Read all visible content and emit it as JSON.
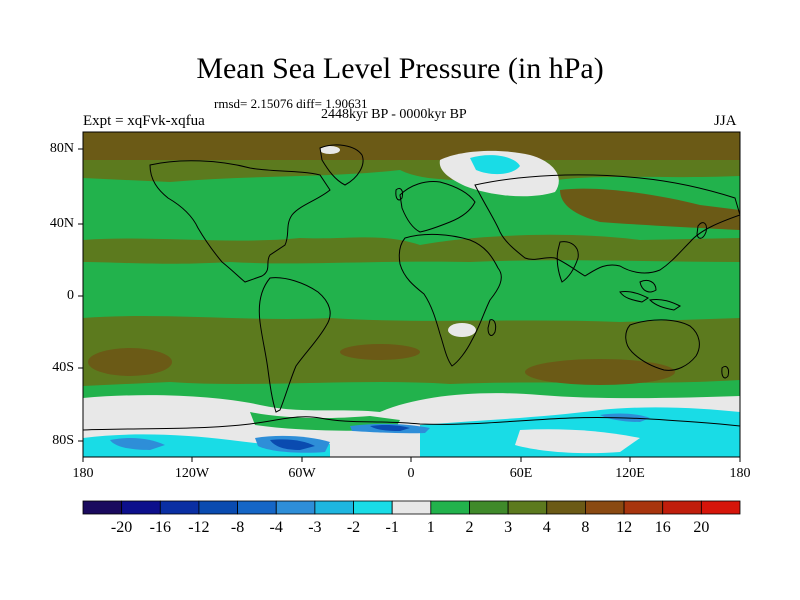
{
  "title": "Mean Sea Level Pressure (in hPa)",
  "stats": "rmsd= 2.15076 diff= 1.90631",
  "period": "2448kyr BP - 0000kyr BP",
  "experiment": "Expt = xqFvk-xqfua",
  "season": "JJA",
  "lat_labels": [
    "80N",
    "40N",
    "0",
    "40S",
    "80S"
  ],
  "lon_labels": [
    "180",
    "120W",
    "60W",
    "0",
    "60E",
    "120E",
    "180"
  ],
  "colorbar": {
    "labels": [
      "-20",
      "-16",
      "-12",
      "-8",
      "-4",
      "-3",
      "-2",
      "-1",
      "1",
      "2",
      "3",
      "4",
      "8",
      "12",
      "16",
      "20"
    ],
    "colors": [
      "#1a0a5e",
      "#0d0f8c",
      "#0a2fa3",
      "#0a4bb0",
      "#1566c6",
      "#2e8ed8",
      "#1eb6e0",
      "#19dce6",
      "#e8e8e8",
      "#22b24c",
      "#3f8a2a",
      "#5c7a1e",
      "#6b5a16",
      "#8a4a12",
      "#a8350e",
      "#c01e0c",
      "#d6150a"
    ]
  },
  "map_colors": {
    "ocean_base": "#22b24c",
    "high": "#6b5a16",
    "mid": "#5c7a1e",
    "neutral": "#e8e8e8",
    "light_blue": "#19dce6",
    "blue": "#2e8ed8",
    "deep_blue": "#0a4bb0",
    "brown": "#8a4a12"
  }
}
